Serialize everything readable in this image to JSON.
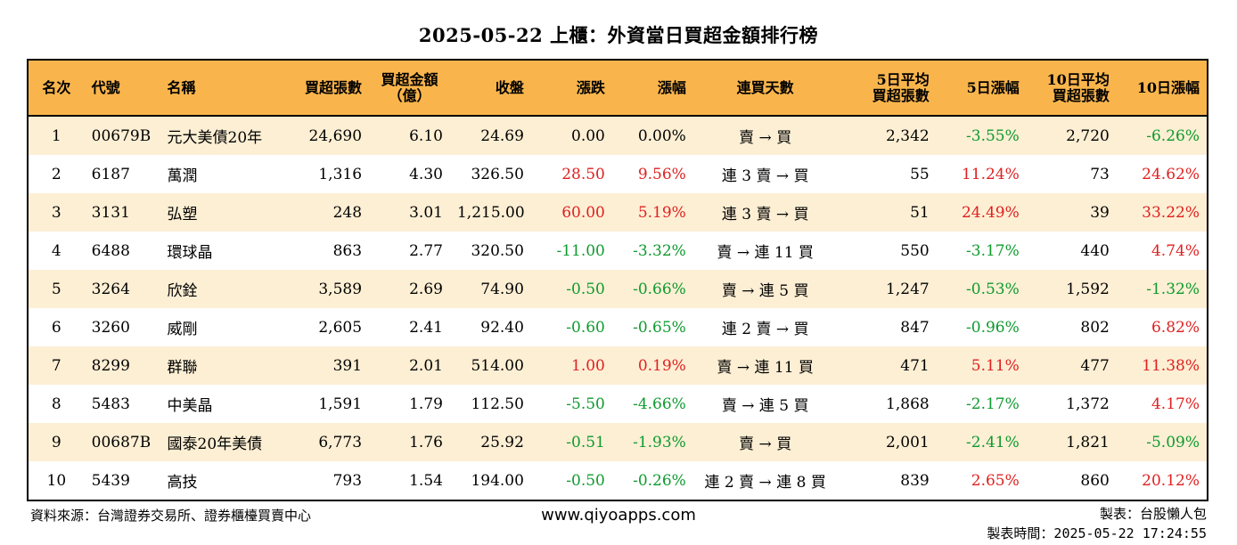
{
  "title": "2025-05-22 上櫃：外資當日買超金額排行榜",
  "headers": [
    "名次",
    "代號",
    "名稱",
    "買超張數",
    "買超金額\n（億）",
    "收盤",
    "漲跌",
    "漲幅",
    "連買天數",
    "5日平均\n買超張數",
    "5日漲幅",
    "10日平均\n買超張數",
    "10日漲幅"
  ],
  "rows": [
    [
      "1",
      "00679B",
      "元大美債20年",
      "24,690",
      "6.10",
      "24.69",
      "0.00",
      "0.00%",
      "賣 → 買",
      "2,342",
      "-3.55%",
      "2,720",
      "-6.26%"
    ],
    [
      "2",
      "6187",
      "萬潤",
      "1,316",
      "4.30",
      "326.50",
      "28.50",
      "9.56%",
      "連 3 賣 → 買",
      "55",
      "11.24%",
      "73",
      "24.62%"
    ],
    [
      "3",
      "3131",
      "弘塑",
      "248",
      "3.01",
      "1,215.00",
      "60.00",
      "5.19%",
      "連 3 賣 → 買",
      "51",
      "24.49%",
      "39",
      "33.22%"
    ],
    [
      "4",
      "6488",
      "環球晶",
      "863",
      "2.77",
      "320.50",
      "-11.00",
      "-3.32%",
      "賣 → 連 11 買",
      "550",
      "-3.17%",
      "440",
      "4.74%"
    ],
    [
      "5",
      "3264",
      "欣銓",
      "3,589",
      "2.69",
      "74.90",
      "-0.50",
      "-0.66%",
      "賣 → 連 5 買",
      "1,247",
      "-0.53%",
      "1,592",
      "-1.32%"
    ],
    [
      "6",
      "3260",
      "威剛",
      "2,605",
      "2.41",
      "92.40",
      "-0.60",
      "-0.65%",
      "連 2 賣 → 買",
      "847",
      "-0.96%",
      "802",
      "6.82%"
    ],
    [
      "7",
      "8299",
      "群聯",
      "391",
      "2.01",
      "514.00",
      "1.00",
      "0.19%",
      "賣 → 連 11 買",
      "471",
      "5.11%",
      "477",
      "11.38%"
    ],
    [
      "8",
      "5483",
      "中美晶",
      "1,591",
      "1.79",
      "112.50",
      "-5.50",
      "-4.66%",
      "賣 → 連 5 買",
      "1,868",
      "-2.17%",
      "1,372",
      "4.17%"
    ],
    [
      "9",
      "00687B",
      "國泰20年美債",
      "6,773",
      "1.76",
      "25.92",
      "-0.51",
      "-1.93%",
      "賣 → 買",
      "2,001",
      "-2.41%",
      "1,821",
      "-5.09%"
    ],
    [
      "10",
      "5439",
      "高技",
      "793",
      "1.54",
      "194.00",
      "-0.50",
      "-0.26%",
      "連 2 賣 → 連 8 買",
      "839",
      "2.65%",
      "860",
      "20.12%"
    ]
  ],
  "footer": {
    "source": "資料來源：台灣證券交易所、證券櫃檯買賣中心",
    "website": "www.qiyoapps.com",
    "maker": "製表：台股懶人包",
    "time": "製表時間：2025-05-22 17:24:55"
  },
  "colors": {
    "header_bg": "#f9b54c",
    "row_alt_bg": "#fdefd4",
    "up": "#e02020",
    "down": "#0e9a2e"
  }
}
